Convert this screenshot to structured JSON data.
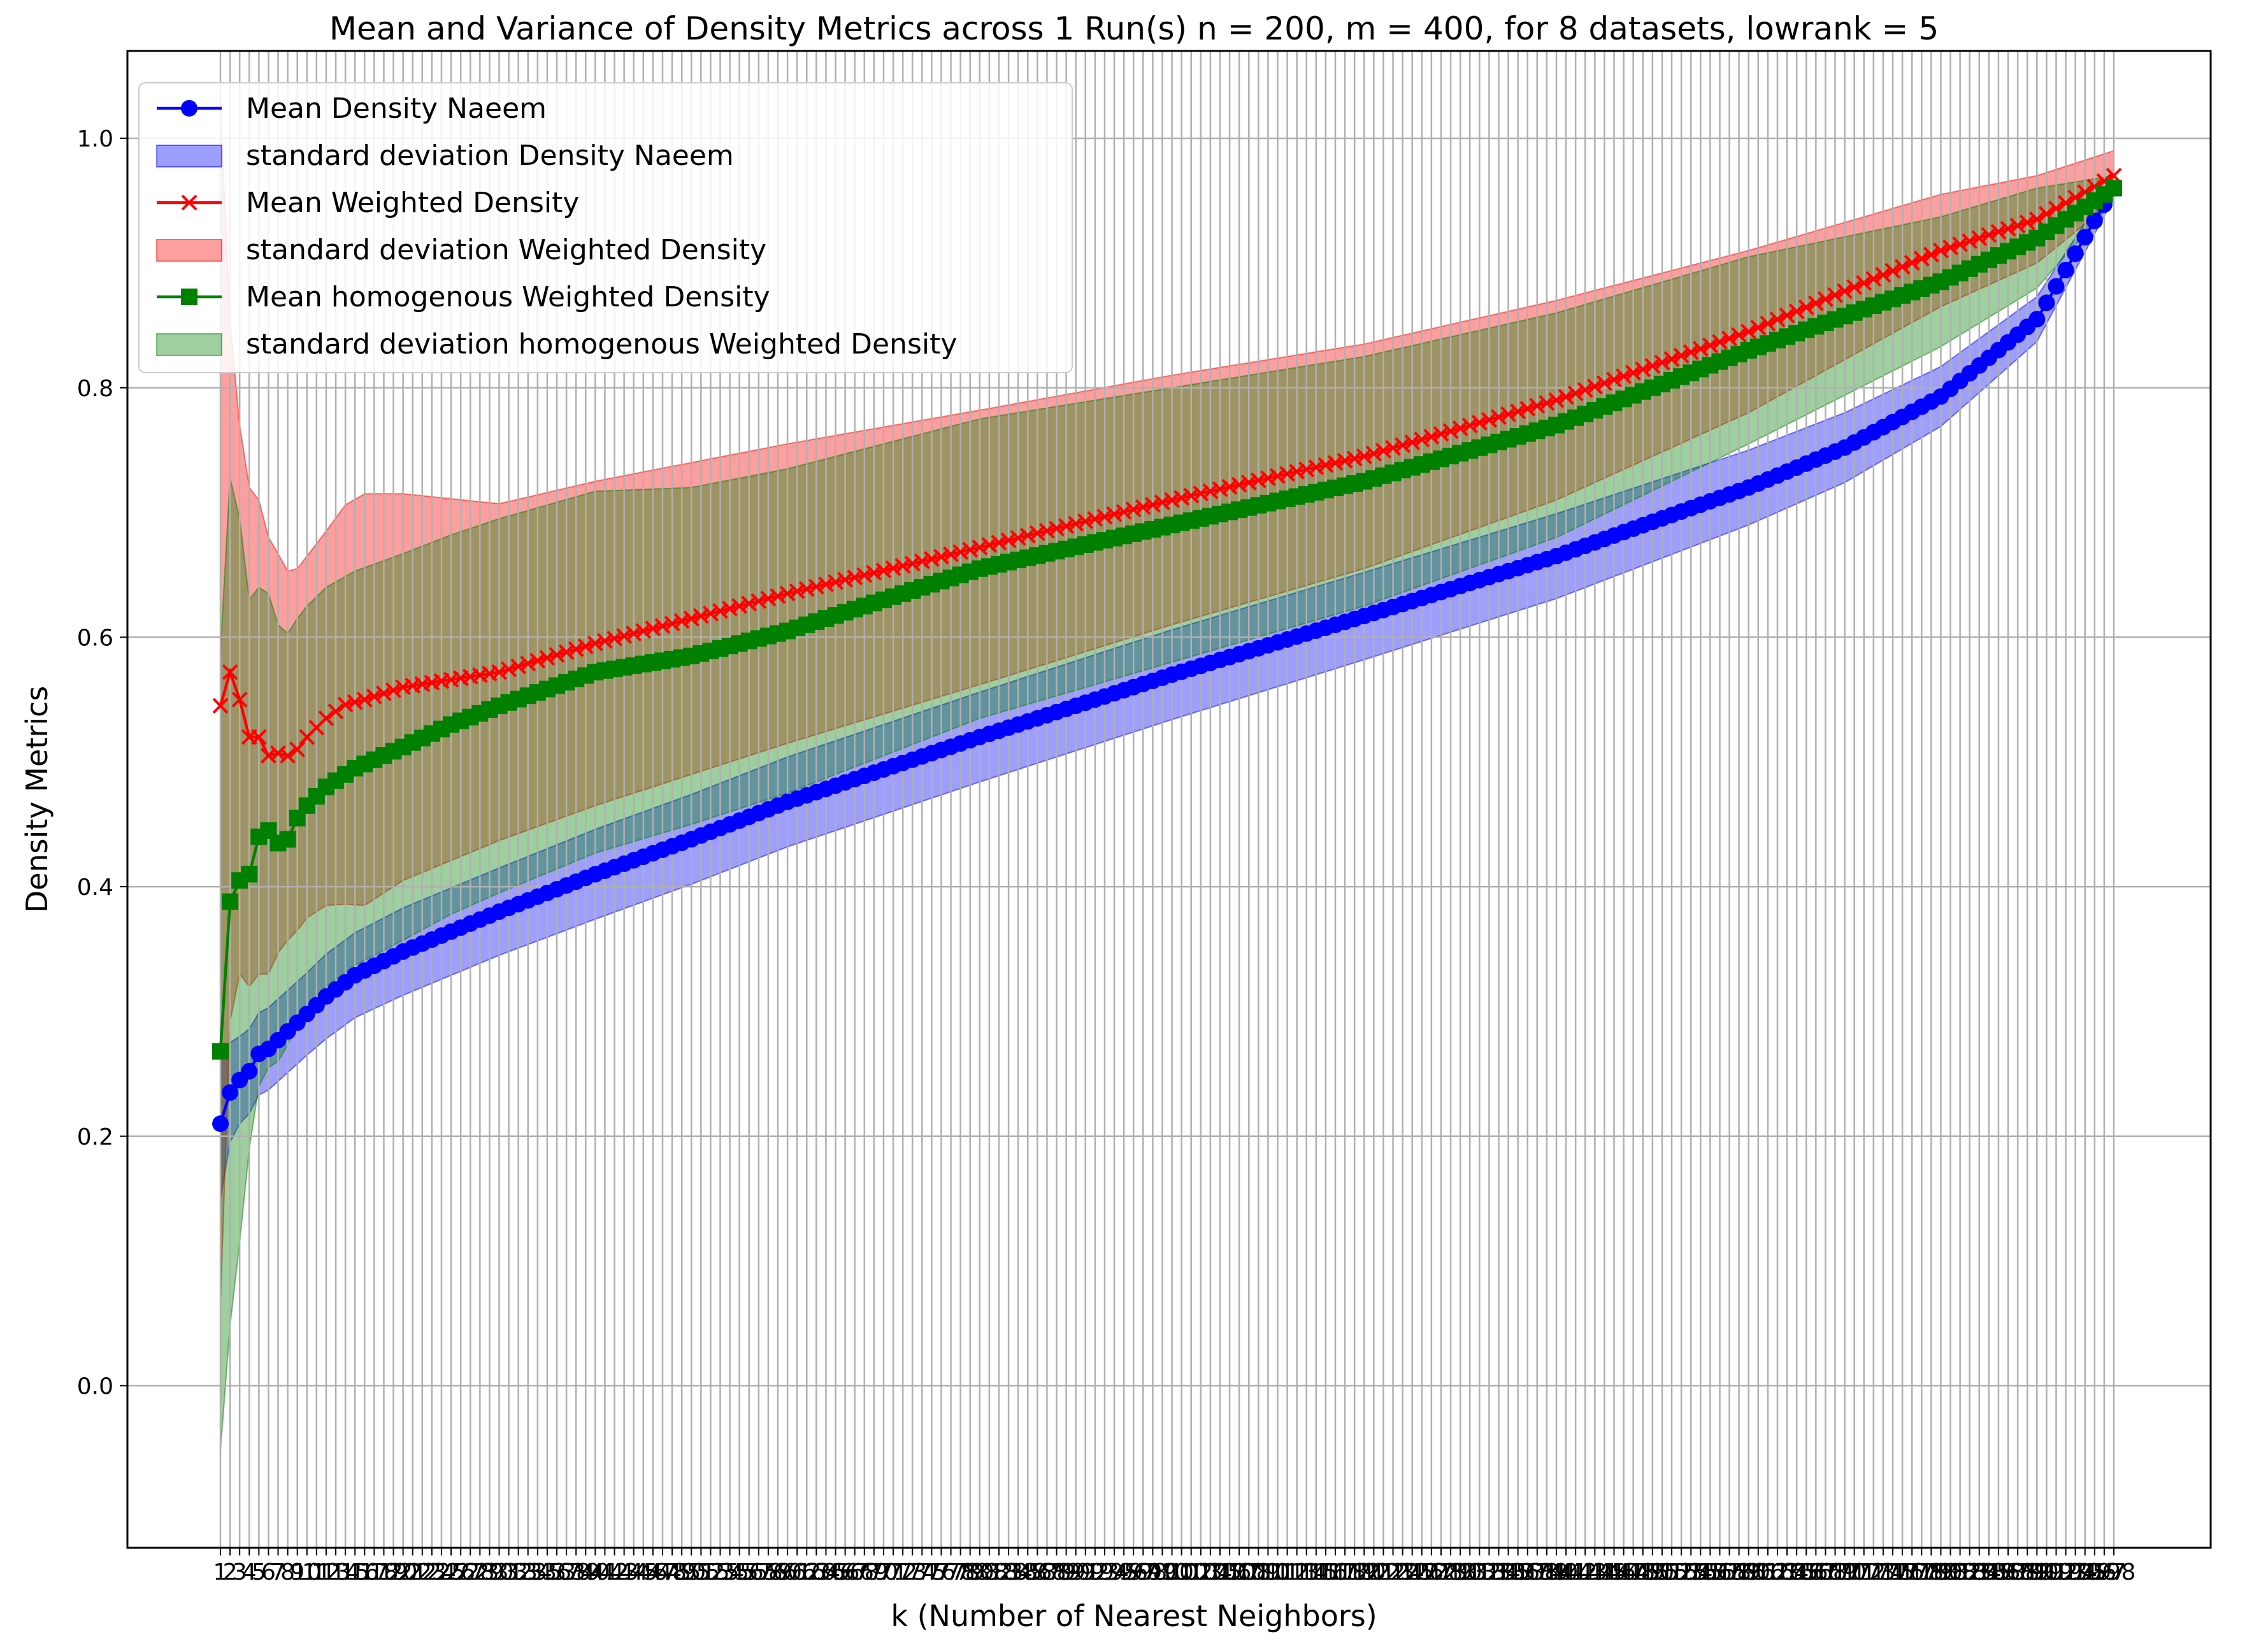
{
  "chart_data": {
    "type": "line",
    "title": "Mean and Variance of Density Metrics across 1 Run(s) n  = 200, m  = 400, for 8 datasets, lowrank = 5",
    "xlabel": "k (Number of Nearest Neighbors)",
    "ylabel": "Density Metrics",
    "x_range": [
      1,
      198
    ],
    "ylim": [
      -0.13,
      1.07
    ],
    "y_ticks": [
      0.0,
      0.2,
      0.4,
      0.6,
      0.8,
      1.0
    ],
    "y_tick_labels": [
      "0.0",
      "0.2",
      "0.4",
      "0.6",
      "0.8",
      "1.0"
    ],
    "grid": true,
    "legend_position": "upper-left",
    "legend": [
      {
        "label": "Mean Density Naeem",
        "kind": "line",
        "color": "#0000ff",
        "marker": "circle"
      },
      {
        "label": "standard deviation Density Naeem",
        "kind": "band",
        "color": "#0000ff"
      },
      {
        "label": "Mean Weighted Density",
        "kind": "line",
        "color": "#ff0000",
        "marker": "x"
      },
      {
        "label": "standard deviation Weighted Density",
        "kind": "band",
        "color": "#ff0000"
      },
      {
        "label": "Mean homogenous Weighted Density",
        "kind": "line",
        "color": "#008000",
        "marker": "square"
      },
      {
        "label": "standard deviation homogenous Weighted Density",
        "kind": "band",
        "color": "#008000"
      }
    ],
    "series": [
      {
        "name": "Mean Density Naeem",
        "color": "#0000ff",
        "marker": "circle",
        "anchors_x": [
          1,
          2,
          3,
          4,
          5,
          6,
          7,
          8,
          10,
          12,
          15,
          20,
          30,
          40,
          50,
          60,
          80,
          100,
          120,
          140,
          160,
          170,
          180,
          190,
          198
        ],
        "anchors_mean": [
          0.21,
          0.235,
          0.245,
          0.252,
          0.266,
          0.27,
          0.277,
          0.284,
          0.298,
          0.312,
          0.329,
          0.348,
          0.38,
          0.41,
          0.438,
          0.468,
          0.52,
          0.57,
          0.617,
          0.665,
          0.72,
          0.752,
          0.793,
          0.855,
          0.96
        ],
        "anchors_sd": [
          0.06,
          0.04,
          0.035,
          0.034,
          0.033,
          0.033,
          0.033,
          0.033,
          0.033,
          0.034,
          0.034,
          0.035,
          0.035,
          0.036,
          0.036,
          0.036,
          0.036,
          0.036,
          0.035,
          0.034,
          0.03,
          0.028,
          0.024,
          0.018,
          0.008
        ]
      },
      {
        "name": "Mean Weighted Density",
        "color": "#ff0000",
        "marker": "x",
        "anchors_x": [
          1,
          2,
          3,
          4,
          5,
          6,
          7,
          8,
          9,
          10,
          12,
          14,
          16,
          20,
          25,
          30,
          40,
          50,
          60,
          80,
          100,
          120,
          140,
          160,
          180,
          190,
          198
        ],
        "anchors_mean": [
          0.545,
          0.572,
          0.55,
          0.52,
          0.52,
          0.505,
          0.507,
          0.505,
          0.51,
          0.52,
          0.535,
          0.546,
          0.55,
          0.56,
          0.566,
          0.572,
          0.595,
          0.615,
          0.635,
          0.672,
          0.71,
          0.745,
          0.79,
          0.845,
          0.91,
          0.935,
          0.97
        ],
        "anchors_sd": [
          0.48,
          0.28,
          0.22,
          0.2,
          0.19,
          0.175,
          0.16,
          0.148,
          0.145,
          0.145,
          0.15,
          0.16,
          0.165,
          0.155,
          0.145,
          0.135,
          0.13,
          0.125,
          0.12,
          0.11,
          0.1,
          0.09,
          0.08,
          0.065,
          0.045,
          0.035,
          0.02
        ]
      },
      {
        "name": "Mean homogenous Weighted Density",
        "color": "#008000",
        "marker": "square",
        "anchors_x": [
          1,
          2,
          3,
          4,
          5,
          6,
          7,
          8,
          9,
          10,
          12,
          15,
          20,
          25,
          30,
          40,
          50,
          60,
          80,
          100,
          120,
          140,
          160,
          180,
          190,
          198
        ],
        "anchors_mean": [
          0.268,
          0.388,
          0.405,
          0.41,
          0.44,
          0.445,
          0.435,
          0.438,
          0.455,
          0.465,
          0.48,
          0.495,
          0.512,
          0.53,
          0.545,
          0.572,
          0.585,
          0.605,
          0.655,
          0.69,
          0.725,
          0.77,
          0.83,
          0.885,
          0.92,
          0.96
        ],
        "anchors_sd": [
          0.32,
          0.34,
          0.29,
          0.22,
          0.2,
          0.19,
          0.175,
          0.165,
          0.16,
          0.16,
          0.16,
          0.158,
          0.155,
          0.152,
          0.15,
          0.145,
          0.135,
          0.13,
          0.12,
          0.11,
          0.1,
          0.09,
          0.075,
          0.052,
          0.04,
          0.01
        ]
      }
    ]
  }
}
